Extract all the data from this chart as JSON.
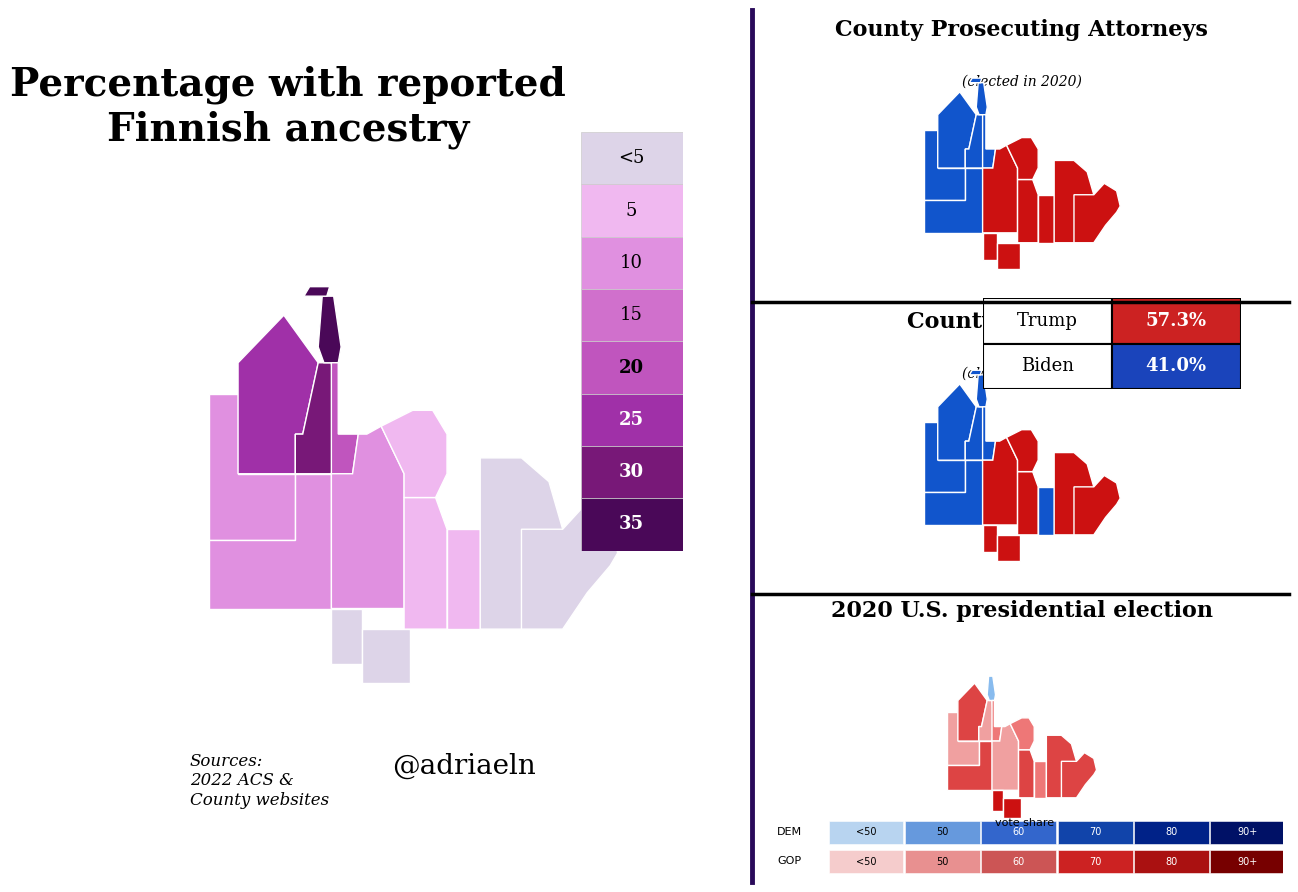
{
  "title_left": "Percentage with reported\nFinnish ancestry",
  "legend_labels": [
    "<5",
    "5",
    "10",
    "15",
    "20",
    "25",
    "30",
    "35"
  ],
  "title_pa": "County Prosecuting Attorneys",
  "subtitle_pa": "(elected in 2020)",
  "title_tr": "County Treasurers",
  "subtitle_tr": "(elected in 2020)",
  "title_pres": "2020 U.S. presidential election",
  "trump_pct": "57.3%",
  "biden_pct": "41.0%",
  "trump_color": "#cc2222",
  "biden_color": "#1a44bb",
  "source_text": "Sources:\n2022 ACS &\nCounty websites",
  "watermark": "@adriaeln",
  "divider_color": "#2a0a5a",
  "background_color": "#ffffff",
  "legend_vote_labels": [
    "<50",
    "50",
    "60",
    "70",
    "80",
    "90+"
  ],
  "dem_legend_colors": [
    "#b8d4f0",
    "#6699dd",
    "#3366cc",
    "#1144aa",
    "#002288",
    "#001166"
  ],
  "gop_legend_colors": [
    "#f5cccc",
    "#e89090",
    "#cc5555",
    "#cc2222",
    "#aa1111",
    "#770000"
  ],
  "counties": {
    "Gogebic": {
      "finn": 14,
      "pa": "D",
      "tr": "D",
      "vote": 53
    },
    "Ontonagon": {
      "finn": 26,
      "pa": "D",
      "tr": "D",
      "vote": 63
    },
    "Houghton": {
      "finn": 31,
      "pa": "D",
      "tr": "D",
      "vote": 54
    },
    "Keweenaw": {
      "finn": 37,
      "pa": "D",
      "tr": "D",
      "vote": 47
    },
    "Baraga": {
      "finn": 21,
      "pa": "D",
      "tr": "D",
      "vote": 59
    },
    "Iron": {
      "finn": 10,
      "pa": "D",
      "tr": "D",
      "vote": 64
    },
    "Marquette": {
      "finn": 14,
      "pa": "R",
      "tr": "R",
      "vote": 54
    },
    "Dickinson": {
      "finn": 4,
      "pa": "R",
      "tr": "R",
      "vote": 72
    },
    "Menominee": {
      "finn": 3,
      "pa": "R",
      "tr": "R",
      "vote": 69
    },
    "Delta": {
      "finn": 5,
      "pa": "R",
      "tr": "R",
      "vote": 61
    },
    "Alger": {
      "finn": 8,
      "pa": "R",
      "tr": "R",
      "vote": 59
    },
    "Schoolcraft": {
      "finn": 5,
      "pa": "R",
      "tr": "D",
      "vote": 60
    },
    "Luce": {
      "finn": 4,
      "pa": "R",
      "tr": "R",
      "vote": 66
    },
    "Mackinac": {
      "finn": 3,
      "pa": "R",
      "tr": "R",
      "vote": 62
    },
    "Chippewa": {
      "finn": 3,
      "pa": "R",
      "tr": "R",
      "vote": 64
    }
  }
}
